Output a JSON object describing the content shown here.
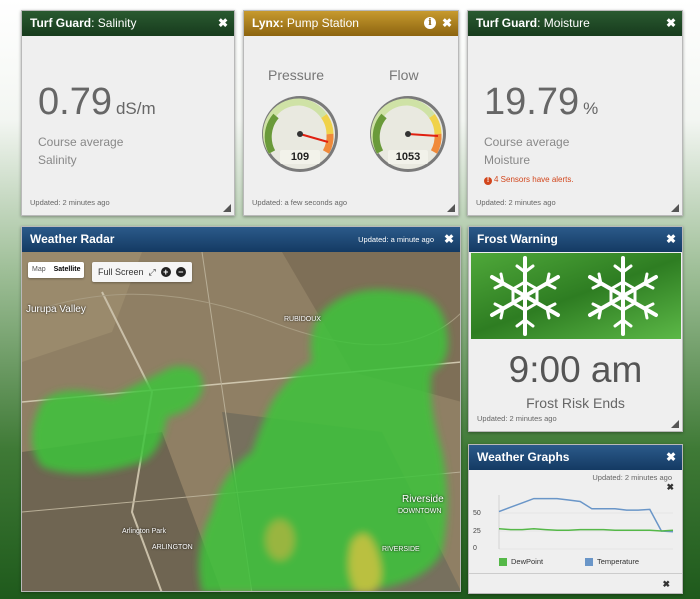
{
  "salinity": {
    "title_bold": "Turf Guard",
    "title_rest": ": Salinity",
    "value": "0.79",
    "unit": "dS/m",
    "line1": "Course average",
    "line2": "Salinity",
    "updated": "Updated: 2 minutes ago"
  },
  "pump": {
    "title_bold": "Lynx:",
    "title_rest": " Pump Station",
    "pressure_label": "Pressure",
    "pressure_value": "109",
    "flow_label": "Flow",
    "flow_value": "1053",
    "updated": "Updated: a few seconds ago"
  },
  "moisture": {
    "title_bold": "Turf Guard",
    "title_rest": ": Moisture",
    "value": "19.79",
    "unit": "%",
    "line1": "Course average",
    "line2": "Moisture",
    "alert": "4 Sensors have alerts.",
    "updated": "Updated: 2 minutes ago"
  },
  "radar": {
    "title": "Weather Radar",
    "updated": "Updated: a minute ago",
    "map_label": "Map",
    "satellite_label": "Satellite",
    "fullscreen_label": "Full Screen",
    "places": [
      "Jurupa Valley",
      "RUBIDOUX",
      "ARLINGTON",
      "Riverside",
      "DOWNTOWN",
      "Arlington Park",
      "RIVERSIDE"
    ]
  },
  "frost": {
    "title": "Frost Warning",
    "time": "9:00 am",
    "subtitle": "Frost Risk Ends",
    "updated": "Updated: 2 minutes ago"
  },
  "graphs": {
    "title": "Weather Graphs",
    "updated": "Updated: 2 minutes ago",
    "legend_dewpoint": "DewPoint",
    "legend_temperature": "Temperature",
    "tick_50": "50",
    "tick_25": "25",
    "tick_0": "0",
    "colors": {
      "dewpoint": "#55b848",
      "temperature": "#6a96c8"
    }
  },
  "chart_data": {
    "type": "line",
    "ylim": [
      0,
      75
    ],
    "yticks": [
      0,
      25,
      50
    ],
    "series": [
      {
        "name": "DewPoint",
        "values": [
          28,
          27,
          27,
          28,
          27,
          26,
          26,
          27,
          27,
          27,
          26,
          26,
          26,
          26,
          25,
          26
        ]
      },
      {
        "name": "Temperature",
        "values": [
          52,
          58,
          64,
          70,
          70,
          70,
          68,
          66,
          56,
          56,
          56,
          54,
          54,
          55,
          25,
          24
        ]
      }
    ]
  }
}
